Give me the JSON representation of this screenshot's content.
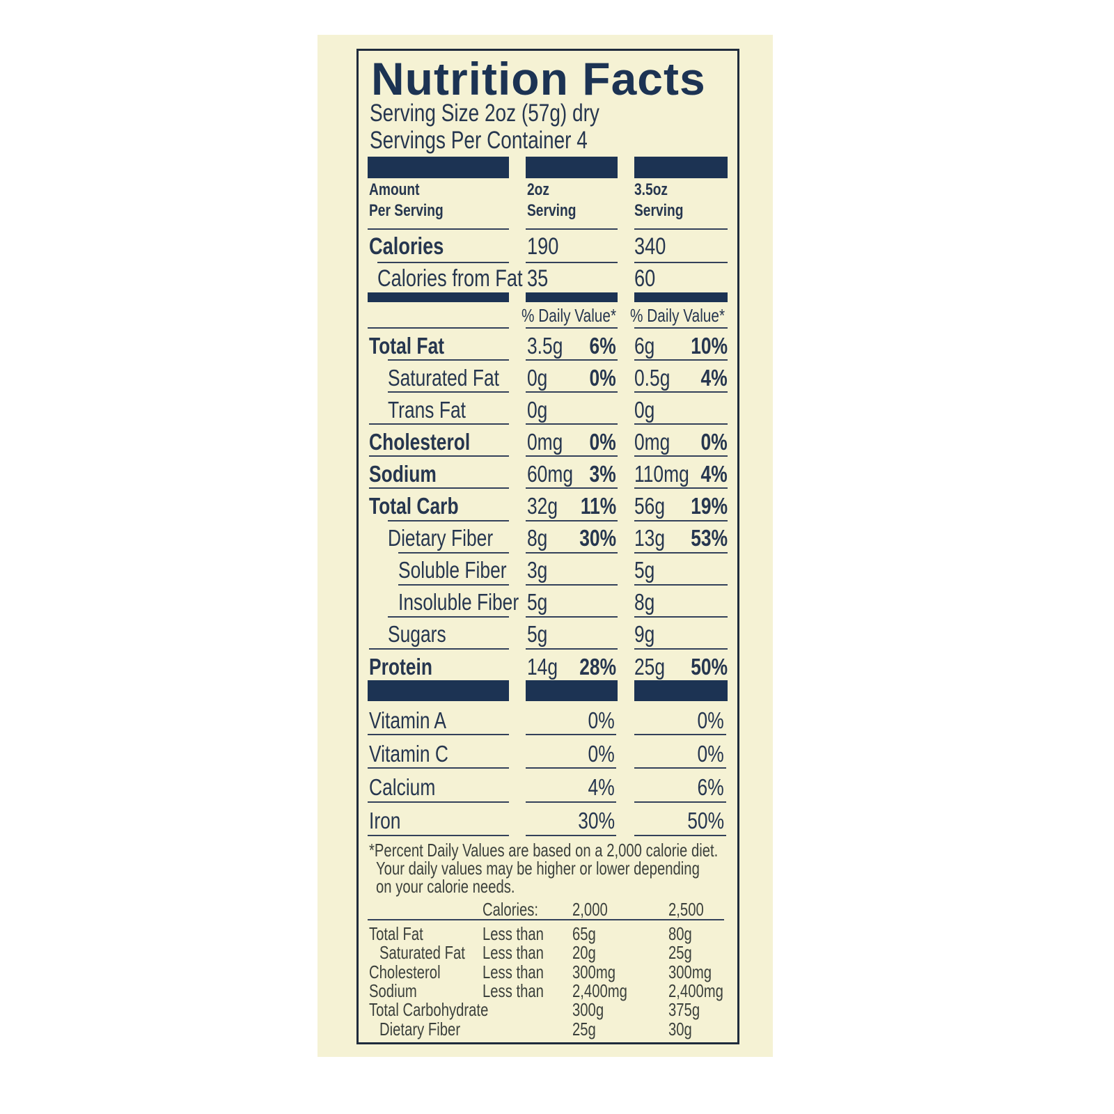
{
  "title": "Nutrition Facts",
  "serving_size": "Serving Size 2oz (57g) dry",
  "servings_per_container": "Servings Per Container 4",
  "header": {
    "col1": [
      "Amount",
      "Per Serving"
    ],
    "col2": [
      "2oz",
      "Serving"
    ],
    "col3": [
      "3.5oz",
      "Serving"
    ]
  },
  "calories": {
    "label": "Calories",
    "c2": "190",
    "c3": "340"
  },
  "calories_from_fat": {
    "label": "Calories from Fat",
    "c2": "35",
    "c3": "60"
  },
  "daily_value_label": "% Daily Value*",
  "nutrients": [
    {
      "label": "Total Fat",
      "bold": true,
      "indent": 0,
      "c2": "3.5g",
      "c2p": "6%",
      "c3": "6g",
      "c3p": "10%"
    },
    {
      "label": "Saturated Fat",
      "bold": false,
      "indent": 1,
      "c2": "0g",
      "c2p": "0%",
      "c3": "0.5g",
      "c3p": "4%"
    },
    {
      "label": "Trans Fat",
      "bold": false,
      "indent": 1,
      "c2": "0g",
      "c2p": "",
      "c3": "0g",
      "c3p": ""
    },
    {
      "label": "Cholesterol",
      "bold": true,
      "indent": 0,
      "c2": "0mg",
      "c2p": "0%",
      "c3": "0mg",
      "c3p": "0%"
    },
    {
      "label": "Sodium",
      "bold": true,
      "indent": 0,
      "c2": "60mg",
      "c2p": "3%",
      "c3": "110mg",
      "c3p": "4%"
    },
    {
      "label": "Total Carb",
      "bold": true,
      "indent": 0,
      "c2": "32g",
      "c2p": "11%",
      "c3": "56g",
      "c3p": "19%"
    },
    {
      "label": "Dietary Fiber",
      "bold": false,
      "indent": 1,
      "c2": "8g",
      "c2p": "30%",
      "c3": "13g",
      "c3p": "53%"
    },
    {
      "label": "Soluble Fiber",
      "bold": false,
      "indent": 2,
      "c2": "3g",
      "c2p": "",
      "c3": "5g",
      "c3p": ""
    },
    {
      "label": "Insoluble Fiber",
      "bold": false,
      "indent": 2,
      "c2": "5g",
      "c2p": "",
      "c3": "8g",
      "c3p": ""
    },
    {
      "label": "Sugars",
      "bold": false,
      "indent": 1,
      "c2": "5g",
      "c2p": "",
      "c3": "9g",
      "c3p": ""
    },
    {
      "label": "Protein",
      "bold": true,
      "indent": 0,
      "c2": "14g",
      "c2p": "28%",
      "c3": "25g",
      "c3p": "50%"
    }
  ],
  "vitamins": [
    {
      "label": "Vitamin A",
      "c2": "0%",
      "c3": "0%"
    },
    {
      "label": "Vitamin C",
      "c2": "0%",
      "c3": "0%"
    },
    {
      "label": "Calcium",
      "c2": "4%",
      "c3": "6%"
    },
    {
      "label": "Iron",
      "c2": "30%",
      "c3": "50%"
    }
  ],
  "footnote": [
    "*Percent Daily Values are based on a 2,000 calorie diet.",
    "Your daily values may be higher or lower depending",
    "on your calorie needs."
  ],
  "dv_table": {
    "header": [
      "Calories:",
      "2,000",
      "2,500"
    ],
    "rows": [
      {
        "label": "Total Fat",
        "indent": 0,
        "qual": "Less than",
        "a": "65g",
        "b": "80g"
      },
      {
        "label": "Saturated Fat",
        "indent": 1,
        "qual": "Less than",
        "a": "20g",
        "b": "25g"
      },
      {
        "label": "Cholesterol",
        "indent": 0,
        "qual": "Less than",
        "a": "300mg",
        "b": "300mg"
      },
      {
        "label": "Sodium",
        "indent": 0,
        "qual": "Less than",
        "a": "2,400mg",
        "b": "2,400mg"
      },
      {
        "label": "Total Carbohydrate",
        "indent": 0,
        "qual": "",
        "a": "300g",
        "b": "375g"
      },
      {
        "label": "Dietary Fiber",
        "indent": 1,
        "qual": "",
        "a": "25g",
        "b": "30g"
      }
    ]
  },
  "colors": {
    "ink": "#1c3353",
    "background": "#f5f2d4"
  }
}
